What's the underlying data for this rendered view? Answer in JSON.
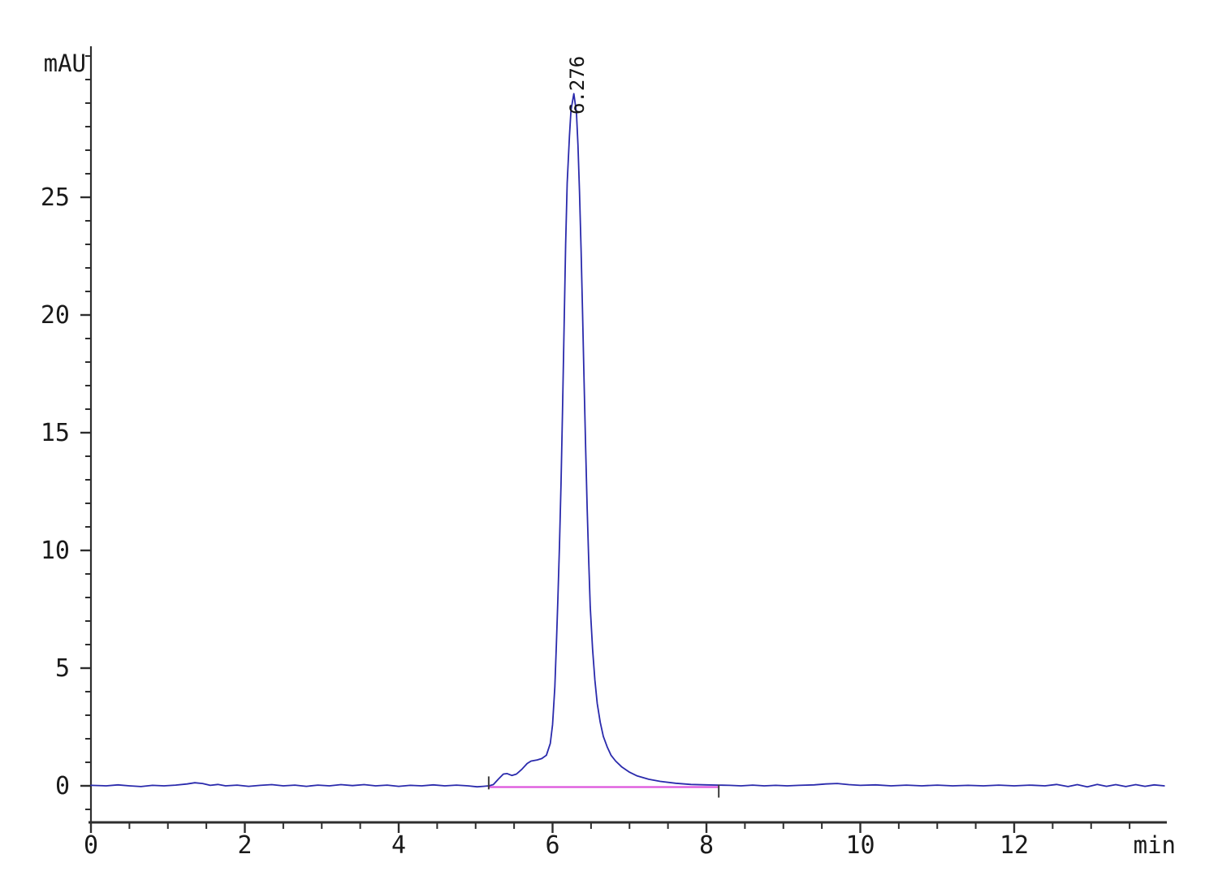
{
  "chart_data": {
    "type": "line",
    "title": "",
    "xlabel": "min",
    "ylabel": "mAU",
    "x_axis": {
      "label": "min",
      "range": [
        0,
        13.95
      ],
      "major_ticks": [
        0,
        2,
        4,
        6,
        8,
        10,
        12
      ],
      "minor_step": 0.5,
      "minor_max": 13.5
    },
    "y_axis": {
      "label": "mAU",
      "range": [
        -1.55,
        31.4
      ],
      "major_ticks": [
        0,
        5,
        10,
        15,
        20,
        25
      ],
      "minor_step": 1,
      "minor_min": -1,
      "minor_max": 31
    },
    "grid": false,
    "legend": false,
    "colors": {
      "trace": "#2a2aac",
      "baseline": "#dd55dd",
      "axis": "#2e2e2e",
      "marker": "#3c3c3c",
      "background": "#ffffff"
    },
    "peaks": [
      {
        "label": "6.276",
        "retention_time_min": 6.276,
        "height_mAU": 29.4
      }
    ],
    "integration_markers": [
      {
        "x": 5.17,
        "y1": -0.15,
        "y2": 0.4
      },
      {
        "x": 8.16,
        "y1": -0.5,
        "y2": 0.05
      }
    ],
    "series": [
      {
        "name": "signal",
        "color": "#2a2aac",
        "points": [
          [
            0,
            0.02
          ],
          [
            0.2,
            0.0
          ],
          [
            0.35,
            0.04
          ],
          [
            0.5,
            0.0
          ],
          [
            0.65,
            -0.03
          ],
          [
            0.8,
            0.02
          ],
          [
            0.95,
            0.0
          ],
          [
            1.1,
            0.03
          ],
          [
            1.25,
            0.08
          ],
          [
            1.35,
            0.13
          ],
          [
            1.45,
            0.1
          ],
          [
            1.55,
            0.02
          ],
          [
            1.65,
            0.06
          ],
          [
            1.75,
            0.0
          ],
          [
            1.9,
            0.03
          ],
          [
            2.05,
            -0.02
          ],
          [
            2.2,
            0.02
          ],
          [
            2.35,
            0.05
          ],
          [
            2.5,
            0.0
          ],
          [
            2.65,
            0.03
          ],
          [
            2.8,
            -0.02
          ],
          [
            2.95,
            0.03
          ],
          [
            3.1,
            0.0
          ],
          [
            3.25,
            0.05
          ],
          [
            3.4,
            0.01
          ],
          [
            3.55,
            0.05
          ],
          [
            3.7,
            0.0
          ],
          [
            3.85,
            0.03
          ],
          [
            4.0,
            -0.02
          ],
          [
            4.15,
            0.02
          ],
          [
            4.3,
            0.0
          ],
          [
            4.45,
            0.04
          ],
          [
            4.6,
            0.0
          ],
          [
            4.75,
            0.03
          ],
          [
            4.9,
            0.0
          ],
          [
            5.02,
            -0.04
          ],
          [
            5.1,
            -0.02
          ],
          [
            5.17,
            0.0
          ],
          [
            5.23,
            0.05
          ],
          [
            5.3,
            0.3
          ],
          [
            5.36,
            0.5
          ],
          [
            5.41,
            0.52
          ],
          [
            5.47,
            0.44
          ],
          [
            5.53,
            0.5
          ],
          [
            5.6,
            0.7
          ],
          [
            5.67,
            0.95
          ],
          [
            5.72,
            1.05
          ],
          [
            5.8,
            1.1
          ],
          [
            5.86,
            1.16
          ],
          [
            5.92,
            1.3
          ],
          [
            5.97,
            1.8
          ],
          [
            6.0,
            2.6
          ],
          [
            6.03,
            4.2
          ],
          [
            6.05,
            6.0
          ],
          [
            6.07,
            8.0
          ],
          [
            6.09,
            10.2
          ],
          [
            6.11,
            12.8
          ],
          [
            6.13,
            16.0
          ],
          [
            6.15,
            19.5
          ],
          [
            6.17,
            23.0
          ],
          [
            6.19,
            25.6
          ],
          [
            6.22,
            27.6
          ],
          [
            6.24,
            28.7
          ],
          [
            6.276,
            29.4
          ],
          [
            6.31,
            28.6
          ],
          [
            6.33,
            27.2
          ],
          [
            6.35,
            25.2
          ],
          [
            6.37,
            22.8
          ],
          [
            6.39,
            20.0
          ],
          [
            6.41,
            17.2
          ],
          [
            6.43,
            14.4
          ],
          [
            6.45,
            11.8
          ],
          [
            6.47,
            9.6
          ],
          [
            6.49,
            7.6
          ],
          [
            6.52,
            5.8
          ],
          [
            6.55,
            4.5
          ],
          [
            6.58,
            3.5
          ],
          [
            6.62,
            2.7
          ],
          [
            6.66,
            2.1
          ],
          [
            6.71,
            1.65
          ],
          [
            6.76,
            1.3
          ],
          [
            6.82,
            1.05
          ],
          [
            6.9,
            0.8
          ],
          [
            7.0,
            0.58
          ],
          [
            7.1,
            0.42
          ],
          [
            7.25,
            0.28
          ],
          [
            7.4,
            0.19
          ],
          [
            7.6,
            0.11
          ],
          [
            7.8,
            0.06
          ],
          [
            8.0,
            0.04
          ],
          [
            8.16,
            0.03
          ],
          [
            8.3,
            0.02
          ],
          [
            8.45,
            0.0
          ],
          [
            8.6,
            0.03
          ],
          [
            8.75,
            0.0
          ],
          [
            8.9,
            0.02
          ],
          [
            9.05,
            0.0
          ],
          [
            9.2,
            0.02
          ],
          [
            9.4,
            0.04
          ],
          [
            9.55,
            0.08
          ],
          [
            9.7,
            0.1
          ],
          [
            9.85,
            0.05
          ],
          [
            10.0,
            0.02
          ],
          [
            10.2,
            0.04
          ],
          [
            10.4,
            0.0
          ],
          [
            10.6,
            0.03
          ],
          [
            10.8,
            0.0
          ],
          [
            11.0,
            0.03
          ],
          [
            11.2,
            0.0
          ],
          [
            11.4,
            0.02
          ],
          [
            11.6,
            0.0
          ],
          [
            11.8,
            0.03
          ],
          [
            12.0,
            0.0
          ],
          [
            12.2,
            0.03
          ],
          [
            12.4,
            0.0
          ],
          [
            12.55,
            0.06
          ],
          [
            12.7,
            -0.03
          ],
          [
            12.82,
            0.05
          ],
          [
            12.95,
            -0.04
          ],
          [
            13.08,
            0.06
          ],
          [
            13.2,
            -0.02
          ],
          [
            13.32,
            0.05
          ],
          [
            13.45,
            -0.03
          ],
          [
            13.58,
            0.05
          ],
          [
            13.7,
            -0.02
          ],
          [
            13.82,
            0.04
          ],
          [
            13.95,
            0.0
          ]
        ]
      },
      {
        "name": "integration-baseline",
        "color": "#dd55dd",
        "points": [
          [
            5.17,
            -0.05
          ],
          [
            8.16,
            -0.05
          ]
        ]
      }
    ]
  }
}
